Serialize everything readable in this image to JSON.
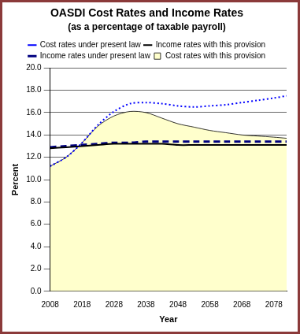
{
  "chart_data": {
    "type": "line",
    "title": "OASDI Cost Rates and Income Rates",
    "subtitle": "(as a percentage of taxable payroll)",
    "xlabel": "Year",
    "ylabel": "Percent",
    "x": [
      2008,
      2013,
      2018,
      2023,
      2028,
      2033,
      2038,
      2043,
      2048,
      2053,
      2058,
      2063,
      2068,
      2073,
      2078,
      2082
    ],
    "series": [
      {
        "name": "Cost rates with this provision",
        "type": "area",
        "color": "#ffffcc",
        "line_style": "solid",
        "values": [
          11.2,
          12.0,
          13.3,
          14.8,
          15.7,
          16.1,
          16.0,
          15.5,
          15.0,
          14.7,
          14.4,
          14.2,
          14.0,
          13.9,
          13.8,
          13.7
        ]
      },
      {
        "name": "Cost rates under present law",
        "type": "line",
        "color": "#0000ff",
        "line_style": "dotted",
        "values": [
          11.2,
          12.0,
          13.3,
          14.9,
          16.1,
          16.8,
          16.9,
          16.8,
          16.6,
          16.5,
          16.6,
          16.7,
          16.9,
          17.1,
          17.3,
          17.5
        ]
      },
      {
        "name": "Income rates with this provision",
        "type": "line",
        "color": "#000000",
        "line_style": "solid",
        "values": [
          12.8,
          12.9,
          13.0,
          13.1,
          13.2,
          13.2,
          13.2,
          13.2,
          13.1,
          13.1,
          13.1,
          13.1,
          13.1,
          13.1,
          13.1,
          13.1
        ]
      },
      {
        "name": "Income rates under present law",
        "type": "line",
        "color": "#000080",
        "line_style": "dashed",
        "values": [
          12.9,
          13.0,
          13.1,
          13.2,
          13.3,
          13.3,
          13.4,
          13.4,
          13.4,
          13.4,
          13.4,
          13.4,
          13.4,
          13.4,
          13.4,
          13.4
        ]
      }
    ],
    "xlim": [
      2008,
      2082
    ],
    "xticks": [
      2008,
      2018,
      2028,
      2038,
      2048,
      2058,
      2068,
      2078
    ],
    "ylim": [
      0,
      20
    ],
    "yticks": [
      {
        "value": 0,
        "label": "0.0"
      },
      {
        "value": 2,
        "label": "2.0"
      },
      {
        "value": 4,
        "label": "4.0"
      },
      {
        "value": 6,
        "label": "6.0"
      },
      {
        "value": 8,
        "label": "8.0"
      },
      {
        "value": 10,
        "label": "10.0"
      },
      {
        "value": 12,
        "label": "12.0"
      },
      {
        "value": 14,
        "label": "14.0"
      },
      {
        "value": 16,
        "label": "16.0"
      },
      {
        "value": 18,
        "label": "18.0"
      },
      {
        "value": 20,
        "label": "20.0"
      }
    ],
    "grid": true,
    "legend": "top"
  }
}
